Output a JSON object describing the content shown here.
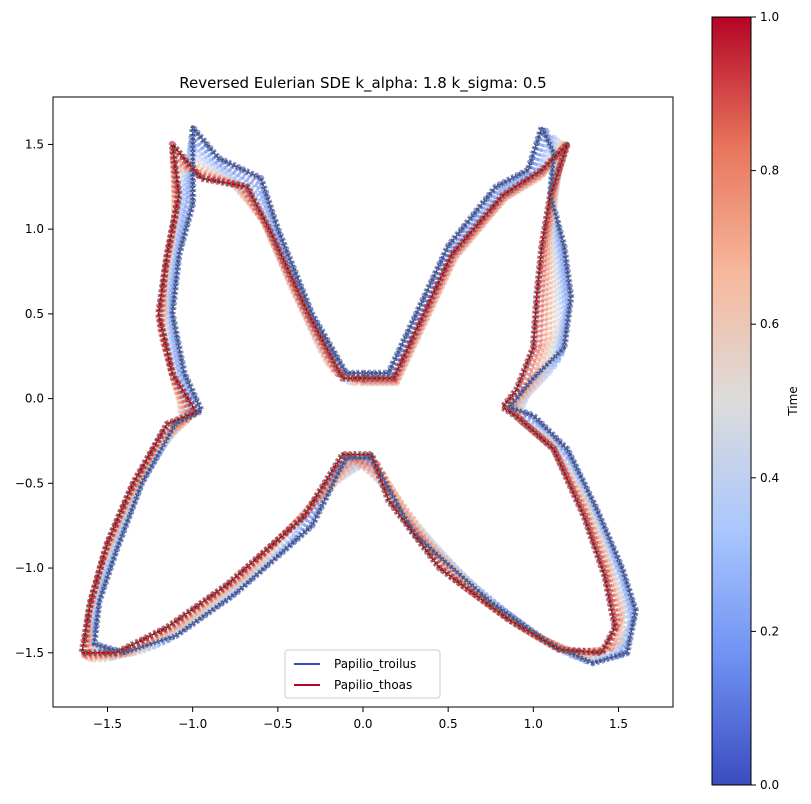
{
  "chart_data": {
    "type": "line",
    "title": "Reversed Eulerian SDE k_alpha: 1.8 k_sigma: 0.5",
    "xlim": [
      -1.82,
      1.82
    ],
    "ylim": [
      -1.82,
      1.78
    ],
    "x_ticks": [
      -1.5,
      -1.0,
      -0.5,
      0.0,
      0.5,
      1.0,
      1.5
    ],
    "x_tick_labels": [
      "−1.5",
      "−1.0",
      "−0.5",
      "0.0",
      "0.5",
      "1.0",
      "1.5"
    ],
    "y_ticks": [
      -1.5,
      -1.0,
      -0.5,
      0.0,
      0.5,
      1.0,
      1.5
    ],
    "y_tick_labels": [
      "−1.5",
      "−1.0",
      "−0.5",
      "0.0",
      "0.5",
      "1.0",
      "1.5"
    ],
    "grid": false,
    "legend_position": "lower-center",
    "series": [
      {
        "name": "Papilio_troilus",
        "color": "#3b4cc0",
        "points": [
          [
            0.0,
            0.15
          ],
          [
            0.15,
            0.15
          ],
          [
            0.5,
            0.9
          ],
          [
            0.78,
            1.25
          ],
          [
            0.97,
            1.35
          ],
          [
            1.05,
            1.6
          ],
          [
            1.12,
            1.45
          ],
          [
            1.1,
            1.2
          ],
          [
            1.18,
            0.9
          ],
          [
            1.22,
            0.6
          ],
          [
            1.18,
            0.3
          ],
          [
            1.0,
            0.12
          ],
          [
            0.86,
            -0.05
          ],
          [
            1.0,
            -0.1
          ],
          [
            1.2,
            -0.3
          ],
          [
            1.37,
            -0.65
          ],
          [
            1.52,
            -1.0
          ],
          [
            1.6,
            -1.25
          ],
          [
            1.55,
            -1.5
          ],
          [
            1.35,
            -1.56
          ],
          [
            1.1,
            -1.45
          ],
          [
            0.75,
            -1.2
          ],
          [
            0.3,
            -0.8
          ],
          [
            0.05,
            -0.35
          ],
          [
            -0.1,
            -0.35
          ],
          [
            -0.3,
            -0.75
          ],
          [
            -0.75,
            -1.15
          ],
          [
            -1.1,
            -1.4
          ],
          [
            -1.4,
            -1.5
          ],
          [
            -1.58,
            -1.45
          ],
          [
            -1.55,
            -1.2
          ],
          [
            -1.45,
            -0.9
          ],
          [
            -1.3,
            -0.5
          ],
          [
            -1.1,
            -0.15
          ],
          [
            -0.95,
            -0.07
          ],
          [
            -1.05,
            0.15
          ],
          [
            -1.12,
            0.5
          ],
          [
            -1.08,
            0.85
          ],
          [
            -1.0,
            1.15
          ],
          [
            -1.0,
            1.6
          ],
          [
            -0.85,
            1.42
          ],
          [
            -0.6,
            1.3
          ],
          [
            -0.5,
            1.0
          ],
          [
            -0.3,
            0.5
          ],
          [
            -0.1,
            0.15
          ],
          [
            0.0,
            0.15
          ]
        ]
      },
      {
        "name": "Papilio_thoas",
        "color": "#b40426",
        "points": [
          [
            0.02,
            0.12
          ],
          [
            0.18,
            0.12
          ],
          [
            0.52,
            0.85
          ],
          [
            0.82,
            1.2
          ],
          [
            1.05,
            1.35
          ],
          [
            1.2,
            1.5
          ],
          [
            1.1,
            1.2
          ],
          [
            1.05,
            0.9
          ],
          [
            1.02,
            0.6
          ],
          [
            1.0,
            0.3
          ],
          [
            0.9,
            0.05
          ],
          [
            0.82,
            -0.05
          ],
          [
            0.92,
            -0.12
          ],
          [
            1.12,
            -0.3
          ],
          [
            1.3,
            -0.7
          ],
          [
            1.42,
            -1.05
          ],
          [
            1.48,
            -1.35
          ],
          [
            1.4,
            -1.5
          ],
          [
            1.15,
            -1.48
          ],
          [
            0.85,
            -1.3
          ],
          [
            0.45,
            -1.0
          ],
          [
            0.15,
            -0.6
          ],
          [
            0.05,
            -0.33
          ],
          [
            -0.12,
            -0.33
          ],
          [
            -0.35,
            -0.7
          ],
          [
            -0.8,
            -1.1
          ],
          [
            -1.15,
            -1.35
          ],
          [
            -1.45,
            -1.5
          ],
          [
            -1.65,
            -1.5
          ],
          [
            -1.6,
            -1.2
          ],
          [
            -1.5,
            -0.85
          ],
          [
            -1.35,
            -0.5
          ],
          [
            -1.15,
            -0.15
          ],
          [
            -0.98,
            -0.08
          ],
          [
            -1.12,
            0.15
          ],
          [
            -1.2,
            0.5
          ],
          [
            -1.15,
            0.85
          ],
          [
            -1.08,
            1.2
          ],
          [
            -1.12,
            1.5
          ],
          [
            -0.95,
            1.3
          ],
          [
            -0.68,
            1.25
          ],
          [
            -0.55,
            1.0
          ],
          [
            -0.32,
            0.5
          ],
          [
            -0.12,
            0.12
          ],
          [
            0.02,
            0.12
          ]
        ]
      }
    ],
    "colorbar": {
      "label": "Time",
      "colormap": "coolwarm",
      "range": [
        0.0,
        1.0
      ],
      "ticks": [
        0.0,
        0.2,
        0.4,
        0.6,
        0.8,
        1.0
      ],
      "tick_labels": [
        "0.0",
        "0.2",
        "0.4",
        "0.6",
        "0.8",
        "1.0"
      ],
      "colors": [
        "#3b4cc0",
        "#6f92f3",
        "#aac7fd",
        "#dddcdc",
        "#f7b89c",
        "#e7745b",
        "#b40426"
      ]
    },
    "frames": {
      "count": 10,
      "description": "intermediate shapes interpolated between the two species over time"
    }
  }
}
